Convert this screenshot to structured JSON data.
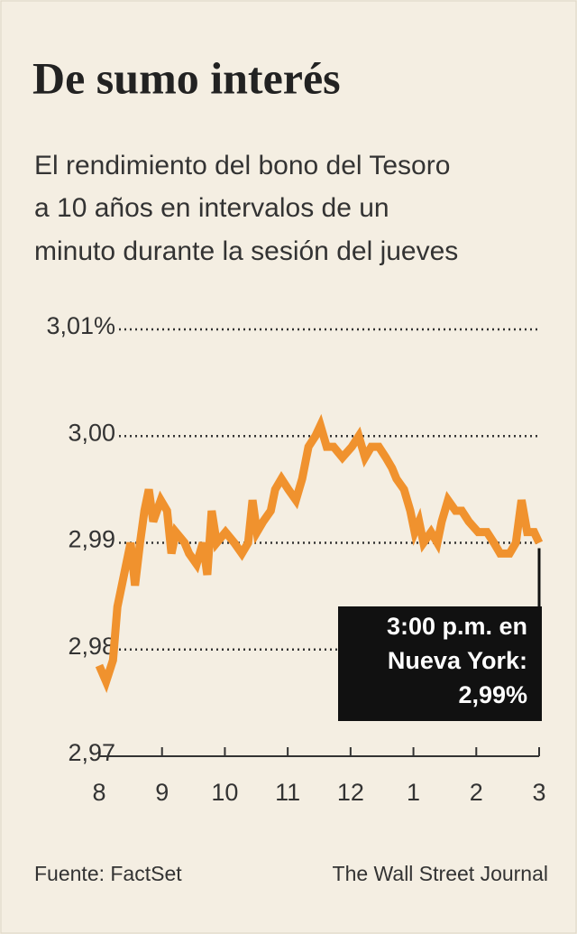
{
  "chart_data": {
    "type": "line",
    "title": "De sumo interés",
    "subtitle": [
      "El rendimiento del bono del Tesoro",
      "a 10 años en intervalos de un",
      "minuto durante la sesión del jueves"
    ],
    "x": [
      8.0,
      8.11,
      8.22,
      8.29,
      8.43,
      8.5,
      8.57,
      8.65,
      8.72,
      8.79,
      8.86,
      8.98,
      9.08,
      9.15,
      9.22,
      9.36,
      9.43,
      9.55,
      9.65,
      9.72,
      9.79,
      9.87,
      10.01,
      10.15,
      10.27,
      10.37,
      10.44,
      10.51,
      10.61,
      10.73,
      10.8,
      10.9,
      11.01,
      11.13,
      11.23,
      11.33,
      11.44,
      11.52,
      11.62,
      11.73,
      11.87,
      12.02,
      12.13,
      12.23,
      12.33,
      12.45,
      12.56,
      12.66,
      12.73,
      12.85,
      12.95,
      13.02,
      13.09,
      13.16,
      13.28,
      13.38,
      13.45,
      13.55,
      13.67,
      13.77,
      13.88,
      14.03,
      14.17,
      14.28,
      14.38,
      14.53,
      14.63,
      14.72,
      14.81,
      14.92,
      15.0
    ],
    "series": [
      {
        "name": "Bono del Tesoro a 10 años",
        "color": "#f0922e",
        "values": [
          2.9785,
          2.977,
          2.979,
          2.984,
          2.988,
          2.99,
          2.986,
          2.99,
          2.993,
          2.995,
          2.992,
          2.994,
          2.993,
          2.989,
          2.991,
          2.99,
          2.989,
          2.988,
          2.99,
          2.987,
          2.993,
          2.99,
          2.991,
          2.99,
          2.989,
          2.99,
          2.994,
          2.991,
          2.992,
          2.993,
          2.995,
          2.996,
          2.995,
          2.994,
          2.996,
          2.999,
          3.0,
          3.001,
          2.999,
          2.999,
          2.998,
          2.999,
          3.0,
          2.998,
          2.999,
          2.999,
          2.998,
          2.997,
          2.996,
          2.995,
          2.993,
          2.991,
          2.992,
          2.99,
          2.991,
          2.99,
          2.992,
          2.994,
          2.993,
          2.993,
          2.992,
          2.991,
          2.991,
          2.99,
          2.989,
          2.989,
          2.99,
          2.994,
          2.991,
          2.991,
          2.99
        ]
      }
    ],
    "xlim": [
      8,
      15
    ],
    "xticks": [
      8,
      9,
      10,
      11,
      12,
      {
        "value": 13,
        "label": "1"
      },
      {
        "value": 14,
        "label": "2"
      },
      {
        "value": 15,
        "label": "3"
      }
    ],
    "ylim": [
      2.97,
      3.01
    ],
    "yticks": [
      {
        "value": 3.01,
        "label": "3,01%"
      },
      {
        "value": 3.0,
        "label": "3,00"
      },
      {
        "value": 2.99,
        "label": "2,99"
      },
      {
        "value": 2.98,
        "label": "2,98"
      },
      {
        "value": 2.97,
        "label": "2,97"
      }
    ],
    "grid": true,
    "annotation": [
      "3:00 p.m. en",
      "Nueva York:",
      "2,99%"
    ],
    "source": "Fuente: FactSet",
    "credit": "The Wall Street Journal"
  }
}
